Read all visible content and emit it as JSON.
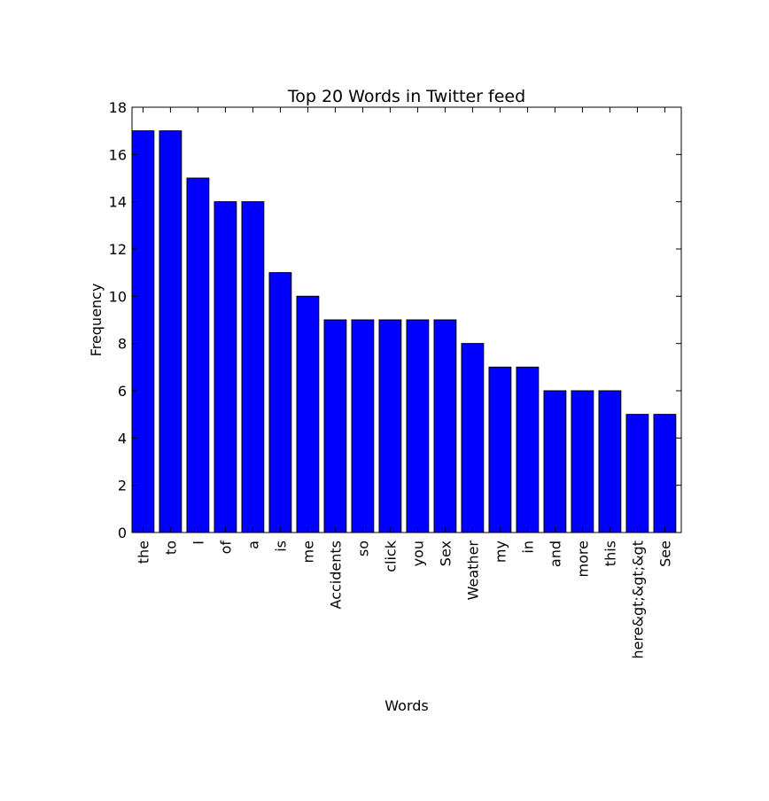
{
  "chart_data": {
    "type": "bar",
    "title": "Top 20 Words in Twitter feed",
    "xlabel": "Words",
    "ylabel": "Frequency",
    "categories": [
      "the",
      "to",
      "I",
      "of",
      "a",
      "is",
      "me",
      "Accidents",
      "so",
      "click",
      "you",
      "Sex",
      "Weather",
      "my",
      "in",
      "and",
      "more",
      "this",
      "here&gt;&gt;&gt",
      "See"
    ],
    "values": [
      17,
      17,
      15,
      14,
      14,
      11,
      10,
      9,
      9,
      9,
      9,
      9,
      8,
      7,
      7,
      6,
      6,
      6,
      5,
      5
    ],
    "ylim": [
      0,
      18
    ],
    "yticks": [
      0,
      2,
      4,
      6,
      8,
      10,
      12,
      14,
      16,
      18
    ],
    "grid": false,
    "colors": {
      "bar_fill": "#0000ff",
      "bar_edge": "#000000",
      "frame": "#000000",
      "background": "#ffffff"
    }
  }
}
